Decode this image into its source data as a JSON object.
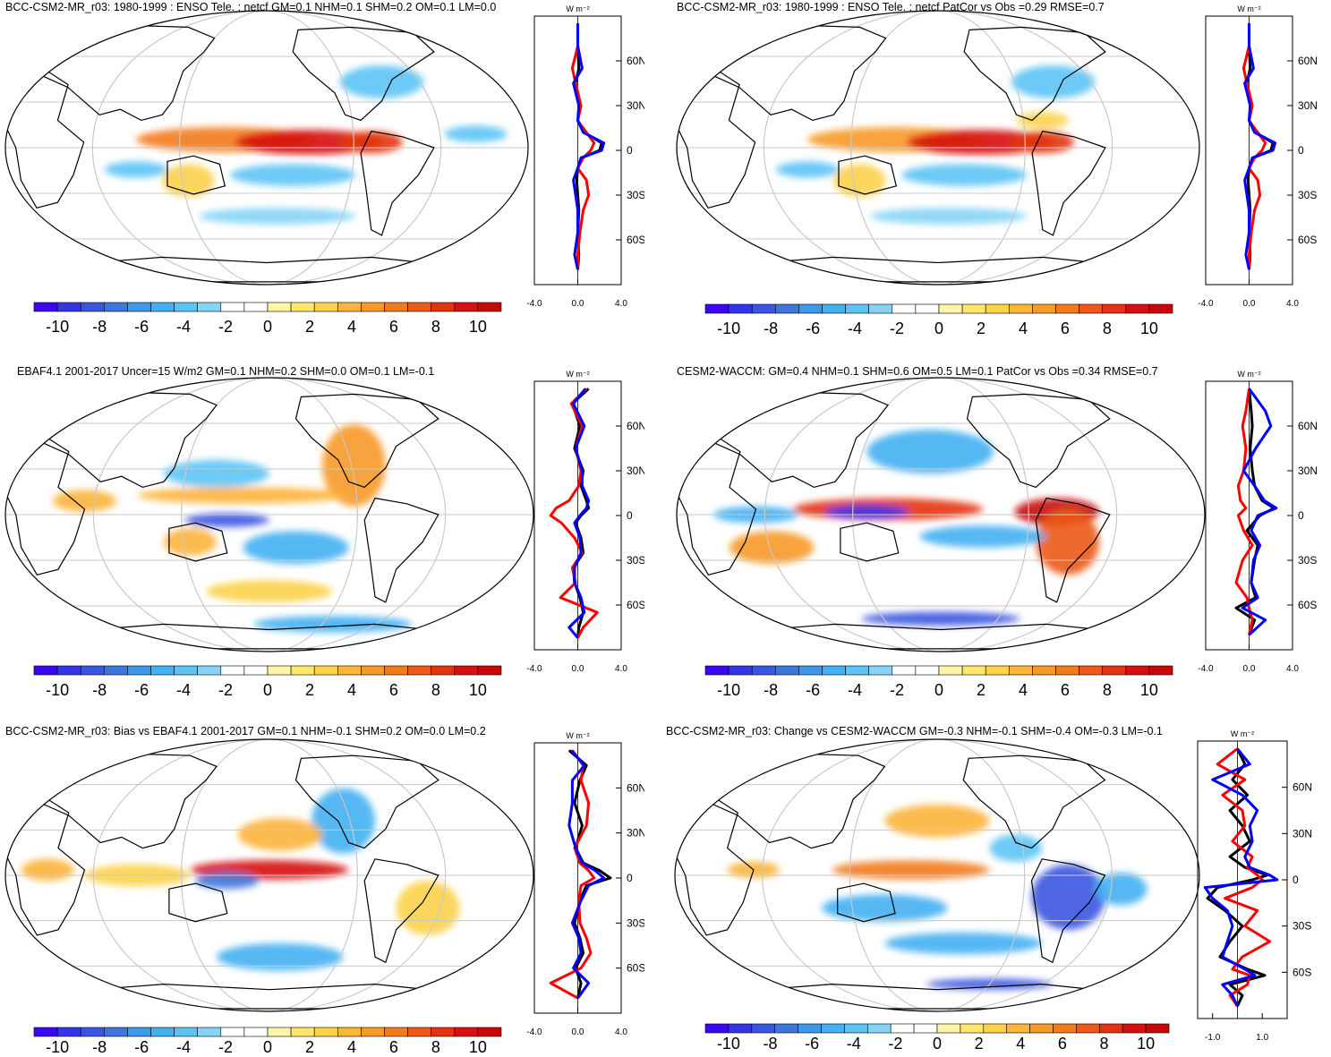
{
  "chart_data": [
    {
      "type": "map+line",
      "title": "BCC-CSM2-MR_r03: 1980-1999 : ENSO Tele. : netcf GM=0.1 NHM=0.1 SHM=0.2 OM=0.1 LM=0.0",
      "colorbar": {
        "ticks": [
          "-10",
          "-8",
          "-6",
          "-4",
          "-2",
          "0",
          "2",
          "4",
          "6",
          "8",
          "10"
        ]
      },
      "profile": {
        "unit_label": "W m⁻²",
        "lat_ticks": [
          "60N",
          "30N",
          "0",
          "30S",
          "60S"
        ],
        "x_ticks": [
          "-4.0",
          "0.0",
          "4.0"
        ],
        "xlim": [
          -4,
          4
        ],
        "series": [
          {
            "name": "model",
            "color": "#000000",
            "lat": [
              85,
              70,
              55,
              45,
              30,
              20,
              12,
              5,
              0,
              -5,
              -12,
              -20,
              -30,
              -40,
              -55,
              -70,
              -80
            ],
            "values": [
              0,
              0,
              0.1,
              -0.2,
              0.2,
              0,
              0.6,
              2.2,
              2.0,
              0.4,
              0,
              -0.1,
              0,
              0.1,
              0,
              0.1,
              0
            ]
          },
          {
            "name": "obs",
            "color": "#ff0000",
            "lat": [
              85,
              70,
              55,
              45,
              30,
              20,
              12,
              5,
              0,
              -5,
              -12,
              -20,
              -30,
              -40,
              -55,
              -70,
              -80
            ],
            "values": [
              0,
              0,
              -0.5,
              -0.2,
              0.3,
              0,
              0.8,
              1.5,
              1.2,
              0.5,
              0,
              0.8,
              1.0,
              0.5,
              0.2,
              0,
              0
            ]
          },
          {
            "name": "reference",
            "color": "#0000ff",
            "lat": [
              85,
              70,
              55,
              45,
              30,
              20,
              12,
              5,
              0,
              -5,
              -12,
              -20,
              -30,
              -40,
              -55,
              -70,
              -80
            ],
            "values": [
              0,
              0,
              0.4,
              -0.4,
              0.1,
              0,
              0.5,
              2.4,
              2.2,
              0.3,
              0,
              -0.4,
              -0.2,
              0,
              0,
              -0.3,
              0
            ]
          }
        ]
      }
    },
    {
      "type": "map+line",
      "title": "BCC-CSM2-MR_r03: 1980-1999 : ENSO Tele. : netcf PatCor vs Obs =0.29 RMSE=0.7",
      "colorbar": {
        "ticks": [
          "-10",
          "-8",
          "-6",
          "-4",
          "-2",
          "0",
          "2",
          "4",
          "6",
          "8",
          "10"
        ]
      },
      "profile": {
        "unit_label": "W m⁻²",
        "lat_ticks": [
          "60N",
          "30N",
          "0",
          "30S",
          "60S"
        ],
        "x_ticks": [
          "-4.0",
          "0.0",
          "4.0"
        ],
        "xlim": [
          -4,
          4
        ],
        "series": [
          {
            "name": "model",
            "color": "#000000",
            "lat": [
              85,
              70,
              55,
              45,
              30,
              20,
              12,
              5,
              0,
              -5,
              -12,
              -20,
              -30,
              -40,
              -55,
              -70,
              -80
            ],
            "values": [
              0,
              0,
              0.1,
              -0.2,
              0.2,
              0,
              0.6,
              2.2,
              2.0,
              0.4,
              0,
              -0.1,
              0,
              0.1,
              0,
              0.1,
              0
            ]
          },
          {
            "name": "obs",
            "color": "#ff0000",
            "lat": [
              85,
              70,
              55,
              45,
              30,
              20,
              12,
              5,
              0,
              -5,
              -12,
              -20,
              -30,
              -40,
              -55,
              -70,
              -80
            ],
            "values": [
              0,
              0,
              -0.5,
              -0.2,
              0.3,
              0,
              0.8,
              1.5,
              1.2,
              0.5,
              0,
              0.8,
              1.0,
              0.5,
              0.2,
              0,
              0
            ]
          },
          {
            "name": "reference",
            "color": "#0000ff",
            "lat": [
              85,
              70,
              55,
              45,
              30,
              20,
              12,
              5,
              0,
              -5,
              -12,
              -20,
              -30,
              -40,
              -55,
              -70,
              -80
            ],
            "values": [
              0,
              0,
              0.4,
              -0.4,
              0.1,
              0,
              0.5,
              2.4,
              2.2,
              0.3,
              0,
              -0.4,
              -0.2,
              0,
              0,
              -0.3,
              0
            ]
          }
        ]
      }
    },
    {
      "type": "map+line",
      "title": "EBAF4.1 2001-2017 Uncer=15 W/m2 GM=0.1 NHM=0.2 SHM=0.0 OM=0.1 LM=-0.1",
      "colorbar": {
        "ticks": [
          "-10",
          "-8",
          "-6",
          "-4",
          "-2",
          "0",
          "2",
          "4",
          "6",
          "8",
          "10"
        ]
      },
      "profile": {
        "unit_label": "W m⁻²",
        "lat_ticks": [
          "60N",
          "30N",
          "0",
          "30S",
          "60S"
        ],
        "x_ticks": [
          "-4.0",
          "0.0",
          "4.0"
        ],
        "xlim": [
          -4,
          4
        ],
        "series": [
          {
            "name": "model",
            "color": "#000000",
            "lat": [
              85,
              75,
              60,
              45,
              30,
              20,
              10,
              5,
              0,
              -5,
              -15,
              -25,
              -35,
              -45,
              -55,
              -65,
              -75,
              -82
            ],
            "values": [
              1.0,
              -0.5,
              0.2,
              -0.3,
              0.5,
              0.3,
              0.8,
              1.0,
              0.3,
              -0.2,
              0.3,
              0.5,
              -0.4,
              -0.3,
              0.2,
              0.5,
              0.1,
              0
            ]
          },
          {
            "name": "obs",
            "color": "#ff0000",
            "lat": [
              85,
              75,
              60,
              45,
              30,
              20,
              10,
              5,
              0,
              -5,
              -15,
              -25,
              -35,
              -45,
              -55,
              -65,
              -75,
              -82
            ],
            "values": [
              0.8,
              -0.6,
              0.4,
              -0.2,
              0.3,
              0.1,
              -0.8,
              -2.0,
              -2.5,
              -1.5,
              -0.3,
              0.4,
              -0.5,
              -0.2,
              -1.6,
              1.8,
              0.5,
              0
            ]
          },
          {
            "name": "reference",
            "color": "#0000ff",
            "lat": [
              85,
              75,
              60,
              45,
              30,
              20,
              10,
              5,
              0,
              -5,
              -15,
              -25,
              -35,
              -45,
              -55,
              -65,
              -75,
              -82
            ],
            "values": [
              0.7,
              -0.4,
              0.6,
              -0.2,
              0.4,
              0.4,
              1.0,
              0.8,
              0.2,
              -0.3,
              0.2,
              0.3,
              -0.3,
              -0.3,
              0.3,
              0.6,
              -0.8,
              0
            ]
          }
        ]
      }
    },
    {
      "type": "map+line",
      "title": "CESM2-WACCM: GM=0.4 NHM=0.1 SHM=0.6 OM=0.5 LM=0.1 PatCor vs Obs =0.34 RMSE=0.7",
      "colorbar": {
        "ticks": [
          "-10",
          "-8",
          "-6",
          "-4",
          "-2",
          "0",
          "2",
          "4",
          "6",
          "8",
          "10"
        ]
      },
      "profile": {
        "unit_label": "W m⁻²",
        "lat_ticks": [
          "60N",
          "30N",
          "0",
          "30S",
          "60S"
        ],
        "x_ticks": [
          "-4.0",
          "0.0",
          "4.0"
        ],
        "xlim": [
          -4,
          4
        ],
        "series": [
          {
            "name": "model",
            "color": "#000000",
            "lat": [
              85,
              70,
              60,
              45,
              30,
              20,
              10,
              5,
              0,
              -10,
              -20,
              -30,
              -45,
              -55,
              -62,
              -70,
              -80
            ],
            "values": [
              0,
              0.2,
              0.3,
              0.1,
              0.3,
              0.5,
              1.2,
              2.3,
              1.0,
              -0.2,
              0.8,
              0.5,
              0.2,
              0.6,
              -1.2,
              0.5,
              0
            ]
          },
          {
            "name": "obs",
            "color": "#ff0000",
            "lat": [
              85,
              70,
              60,
              45,
              30,
              20,
              10,
              5,
              0,
              -10,
              -20,
              -30,
              -45,
              -55,
              -62,
              -70,
              -80
            ],
            "values": [
              0,
              -0.3,
              -0.6,
              -0.3,
              -0.5,
              -1.0,
              -0.8,
              -0.3,
              -1.0,
              -0.5,
              0.3,
              -0.6,
              -1.2,
              -0.2,
              0,
              0.3,
              0
            ]
          },
          {
            "name": "reference",
            "color": "#0000ff",
            "lat": [
              85,
              70,
              60,
              45,
              30,
              20,
              10,
              5,
              0,
              -10,
              -20,
              -30,
              -45,
              -55,
              -62,
              -70,
              -80
            ],
            "values": [
              0,
              1.5,
              2.0,
              0.6,
              -0.5,
              0.5,
              1.4,
              2.5,
              0.8,
              0.2,
              1.0,
              0.4,
              0.2,
              0.8,
              -0.6,
              1.5,
              0
            ]
          }
        ]
      }
    },
    {
      "type": "map+line",
      "title": "BCC-CSM2-MR_r03: Bias vs EBAF4.1 2001-2017 GM=0.1 NHM=-0.1 SHM=0.2 OM=0.0 LM=0.2",
      "colorbar": {
        "ticks": [
          "-10",
          "-8",
          "-6",
          "-4",
          "-2",
          "0",
          "2",
          "4",
          "6",
          "8",
          "10"
        ]
      },
      "profile": {
        "unit_label": "W m⁻²",
        "lat_ticks": [
          "60N",
          "30N",
          "0",
          "30S",
          "60S"
        ],
        "x_ticks": [
          "-4.0",
          "0.0",
          "4.0"
        ],
        "xlim": [
          -4,
          4
        ],
        "series": [
          {
            "name": "model",
            "color": "#000000",
            "lat": [
              85,
              75,
              65,
              50,
              35,
              20,
              10,
              5,
              0,
              -5,
              -15,
              -30,
              -40,
              -50,
              -60,
              -70,
              -80
            ],
            "values": [
              -0.8,
              0.8,
              0.2,
              -0.3,
              0.4,
              -0.2,
              0.5,
              2.0,
              3.0,
              0.8,
              0.2,
              -0.3,
              0.2,
              0.5,
              -0.2,
              0.3,
              0
            ]
          },
          {
            "name": "obs",
            "color": "#ff0000",
            "lat": [
              85,
              75,
              65,
              50,
              35,
              20,
              10,
              5,
              0,
              -5,
              -15,
              -30,
              -40,
              -50,
              -60,
              -70,
              -80
            ],
            "values": [
              -0.5,
              0.5,
              0.3,
              1.0,
              0.8,
              -0.3,
              0.2,
              1.0,
              1.5,
              0.3,
              0.1,
              0.2,
              0.8,
              1.2,
              0.3,
              -2.5,
              0
            ]
          },
          {
            "name": "reference",
            "color": "#0000ff",
            "lat": [
              85,
              75,
              65,
              50,
              35,
              20,
              10,
              5,
              0,
              -5,
              -15,
              -30,
              -40,
              -50,
              -60,
              -70,
              -80
            ],
            "values": [
              -0.6,
              0.6,
              -0.5,
              -0.5,
              -0.8,
              -0.2,
              0.4,
              1.6,
              2.4,
              1.0,
              0.3,
              -0.5,
              0.1,
              0.3,
              -0.4,
              1.0,
              0
            ]
          }
        ]
      }
    },
    {
      "type": "map+line",
      "title": "BCC-CSM2-MR_r03: Change vs CESM2-WACCM GM=-0.3 NHM=-0.1 SHM=-0.4 OM=-0.3 LM=-0.1",
      "colorbar": {
        "ticks": [
          "-10",
          "-8",
          "-6",
          "-4",
          "-2",
          "0",
          "2",
          "4",
          "6",
          "8",
          "10"
        ]
      },
      "profile": {
        "unit_label": "W m⁻²",
        "lat_ticks": [
          "60N",
          "30N",
          "0",
          "30S",
          "60S"
        ],
        "x_ticks": [
          "-1.0",
          "1.0"
        ],
        "xlim": [
          -1.6,
          2.0
        ],
        "x_tick_values": [
          -1.0,
          1.0
        ],
        "series": [
          {
            "name": "model",
            "color": "#000000",
            "lat": [
              85,
              75,
              65,
              55,
              45,
              35,
              25,
              15,
              8,
              3,
              0,
              -5,
              -12,
              -20,
              -30,
              -40,
              -50,
              -58,
              -62,
              -68,
              -75,
              -82
            ],
            "values": [
              0,
              0.3,
              -0.2,
              0.4,
              -0.3,
              0.2,
              0.5,
              -0.3,
              0.3,
              1.2,
              0.6,
              -0.8,
              -1.2,
              -0.5,
              0.2,
              -0.3,
              -0.7,
              0.4,
              1.1,
              -0.3,
              0.2,
              0
            ]
          },
          {
            "name": "obs",
            "color": "#ff0000",
            "lat": [
              85,
              75,
              65,
              55,
              45,
              35,
              25,
              15,
              8,
              3,
              0,
              -5,
              -12,
              -20,
              -30,
              -40,
              -50,
              -58,
              -62,
              -68,
              -75,
              -82
            ],
            "values": [
              0,
              -0.8,
              0.3,
              -0.6,
              0.2,
              0.3,
              -0.2,
              0.6,
              0.4,
              0.8,
              1.0,
              0.6,
              -0.5,
              0.8,
              0.3,
              1.3,
              0.2,
              -0.2,
              0.5,
              0.4,
              -0.3,
              0
            ]
          },
          {
            "name": "reference",
            "color": "#0000ff",
            "lat": [
              85,
              75,
              65,
              55,
              45,
              35,
              25,
              15,
              8,
              3,
              0,
              -5,
              -12,
              -20,
              -30,
              -40,
              -50,
              -58,
              -62,
              -68,
              -75,
              -82
            ],
            "values": [
              0,
              0.5,
              -1.0,
              0.2,
              0.8,
              0.5,
              0.6,
              0.3,
              0.5,
              1.3,
              1.6,
              -1.3,
              -1.0,
              -0.4,
              -0.2,
              -0.4,
              -0.6,
              0.3,
              0.7,
              -0.6,
              -0.2,
              0
            ]
          }
        ]
      }
    }
  ],
  "colorbar_colors": [
    "#3b06f0",
    "#3535e8",
    "#3a55e0",
    "#3f76db",
    "#3d97ea",
    "#42b0f2",
    "#5cc4f5",
    "#86d4f5",
    "#ffffff",
    "#ffffff",
    "#fff5a6",
    "#ffe66b",
    "#fcd24a",
    "#fcb43a",
    "#f79a2a",
    "#f27b1c",
    "#ec5a15",
    "#e33412",
    "#d61010",
    "#c80808"
  ],
  "styling": {
    "grid_color": "#c8c8c8",
    "coast_color": "#000000"
  }
}
